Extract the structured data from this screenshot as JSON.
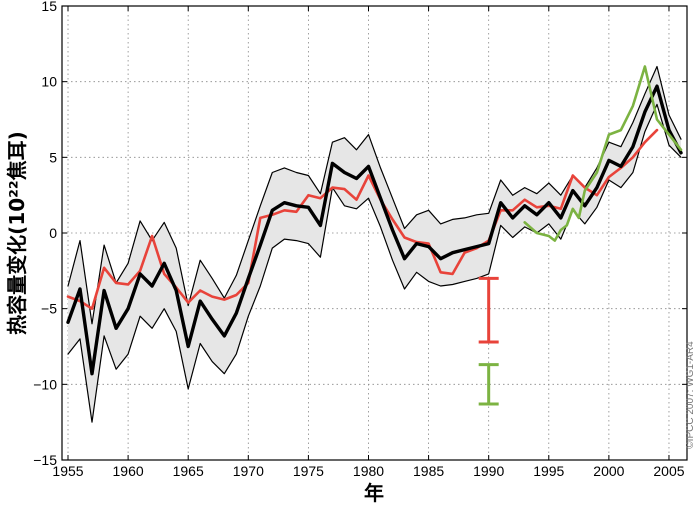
{
  "chart_data": {
    "type": "line",
    "title": "",
    "xlabel": "年",
    "ylabel": "热容量变化(10²²焦耳)",
    "xlim": [
      1954.5,
      2006.5
    ],
    "ylim": [
      -15,
      15
    ],
    "grid": true,
    "xticks": [
      1955,
      1960,
      1965,
      1970,
      1975,
      1980,
      1985,
      1990,
      1995,
      2000,
      2005
    ],
    "xtick_labels": [
      "1955",
      "1960",
      "1965",
      "1970",
      "1975",
      "1980",
      "1985",
      "1990",
      "1995",
      "2000",
      "2005"
    ],
    "yticks": [
      15,
      10,
      5,
      0,
      -5,
      -10,
      -15
    ],
    "ytick_labels": [
      "15",
      "10",
      "5",
      "0",
      "−5",
      "−10",
      "−15"
    ],
    "credit": "©IPCC 2007: WG1-AR4",
    "series": [
      {
        "name": "Mean (black)",
        "color": "#000000",
        "x": [
          1955,
          1956,
          1957,
          1958,
          1959,
          1960,
          1961,
          1962,
          1963,
          1964,
          1965,
          1966,
          1967,
          1968,
          1969,
          1970,
          1971,
          1972,
          1973,
          1974,
          1975,
          1976,
          1977,
          1978,
          1979,
          1980,
          1981,
          1982,
          1983,
          1984,
          1985,
          1986,
          1987,
          1988,
          1989,
          1990,
          1991,
          1992,
          1993,
          1994,
          1995,
          1996,
          1997,
          1998,
          1999,
          2000,
          2001,
          2002,
          2003,
          2004,
          2005,
          2006
        ],
        "values": [
          -5.9,
          -3.7,
          -9.3,
          -3.8,
          -6.3,
          -5.0,
          -2.7,
          -3.5,
          -2.0,
          -3.8,
          -7.5,
          -4.5,
          -5.7,
          -6.8,
          -5.3,
          -3.0,
          -0.8,
          1.5,
          2.0,
          1.8,
          1.7,
          0.5,
          4.6,
          4.0,
          3.6,
          4.4,
          2.3,
          0.2,
          -1.7,
          -0.7,
          -0.9,
          -1.7,
          -1.3,
          -1.1,
          -0.9,
          -0.7,
          2.0,
          1.0,
          1.8,
          1.2,
          2.0,
          1.0,
          2.8,
          1.8,
          3.0,
          4.8,
          4.4,
          5.7,
          8.0,
          9.7,
          6.8,
          5.3
        ]
      },
      {
        "name": "Upper uncertainty bound",
        "color": "#000000",
        "x": [
          1955,
          1956,
          1957,
          1958,
          1959,
          1960,
          1961,
          1962,
          1963,
          1964,
          1965,
          1966,
          1967,
          1968,
          1969,
          1970,
          1971,
          1972,
          1973,
          1974,
          1975,
          1976,
          1977,
          1978,
          1979,
          1980,
          1981,
          1982,
          1983,
          1984,
          1985,
          1986,
          1987,
          1988,
          1989,
          1990,
          1991,
          1992,
          1993,
          1994,
          1995,
          1996,
          1997,
          1998,
          1999,
          2000,
          2001,
          2002,
          2003,
          2004,
          2005,
          2006
        ],
        "values": [
          -3.5,
          -0.5,
          -6.0,
          -0.8,
          -3.3,
          -2.0,
          0.8,
          -0.5,
          0.7,
          -1.0,
          -4.8,
          -1.8,
          -3.0,
          -4.3,
          -2.8,
          -0.5,
          1.8,
          4.0,
          4.3,
          4.0,
          3.8,
          2.6,
          6.0,
          6.3,
          5.5,
          6.5,
          4.3,
          2.3,
          0.3,
          1.2,
          1.5,
          0.6,
          0.9,
          1.0,
          1.2,
          1.3,
          3.5,
          2.5,
          3.0,
          2.6,
          3.3,
          2.5,
          3.8,
          3.0,
          4.3,
          6.0,
          5.7,
          7.3,
          9.2,
          11.0,
          7.8,
          6.2
        ]
      },
      {
        "name": "Lower uncertainty bound",
        "color": "#000000",
        "x": [
          1955,
          1956,
          1957,
          1958,
          1959,
          1960,
          1961,
          1962,
          1963,
          1964,
          1965,
          1966,
          1967,
          1968,
          1969,
          1970,
          1971,
          1972,
          1973,
          1974,
          1975,
          1976,
          1977,
          1978,
          1979,
          1980,
          1981,
          1982,
          1983,
          1984,
          1985,
          1986,
          1987,
          1988,
          1989,
          1990,
          1991,
          1992,
          1993,
          1994,
          1995,
          1996,
          1997,
          1998,
          1999,
          2000,
          2001,
          2002,
          2003,
          2004,
          2005,
          2006
        ],
        "values": [
          -8.0,
          -7.0,
          -12.5,
          -6.8,
          -9.0,
          -8.0,
          -5.5,
          -6.3,
          -5.0,
          -6.5,
          -10.3,
          -7.3,
          -8.5,
          -9.3,
          -8.0,
          -5.5,
          -3.5,
          -1.0,
          -0.4,
          -0.5,
          -0.7,
          -1.6,
          3.0,
          1.8,
          1.6,
          2.3,
          0.4,
          -1.8,
          -3.7,
          -2.6,
          -3.2,
          -3.5,
          -3.4,
          -3.2,
          -3.0,
          -2.7,
          0.5,
          -0.3,
          0.4,
          0.0,
          0.6,
          -0.4,
          1.5,
          0.6,
          1.7,
          3.5,
          3.0,
          4.0,
          6.7,
          8.5,
          5.8,
          5.0
        ]
      },
      {
        "name": "Red series",
        "color": "#e8433a",
        "x": [
          1955,
          1956,
          1957,
          1958,
          1959,
          1960,
          1961,
          1962,
          1963,
          1964,
          1965,
          1966,
          1967,
          1968,
          1969,
          1970,
          1971,
          1972,
          1973,
          1974,
          1975,
          1976,
          1977,
          1978,
          1979,
          1980,
          1981,
          1982,
          1983,
          1984,
          1985,
          1986,
          1987,
          1988,
          1989,
          1990,
          1991,
          1992,
          1993,
          1994,
          1995,
          1996,
          1997,
          1998,
          1999,
          2000,
          2001,
          2002,
          2003,
          2004
        ],
        "values": [
          -4.2,
          -4.5,
          -5.0,
          -2.3,
          -3.3,
          -3.4,
          -2.5,
          -0.2,
          -2.7,
          -3.6,
          -4.6,
          -3.8,
          -4.2,
          -4.4,
          -4.1,
          -3.3,
          1.0,
          1.2,
          1.5,
          1.4,
          2.5,
          2.3,
          3.0,
          2.9,
          2.2,
          3.8,
          2.2,
          0.9,
          -0.3,
          -0.6,
          -0.7,
          -2.6,
          -2.7,
          -1.3,
          -1.0,
          -0.5,
          1.5,
          1.5,
          2.2,
          1.7,
          1.8,
          1.6,
          3.8,
          3.0,
          2.5,
          3.7,
          4.3,
          5.0,
          6.0,
          6.8
        ]
      },
      {
        "name": "Green series",
        "color": "#7cb342",
        "x": [
          1993,
          1994,
          1995,
          1995.5,
          1996,
          1996.5,
          1997,
          1997.5,
          1998,
          1999,
          2000,
          2001,
          2002,
          2003,
          2004,
          2005,
          2006
        ],
        "values": [
          0.7,
          0.0,
          -0.2,
          -0.5,
          0.2,
          0.5,
          1.6,
          1.0,
          2.8,
          4.0,
          6.5,
          6.8,
          8.4,
          11.0,
          7.5,
          6.5,
          5.5
        ]
      }
    ],
    "error_bars": [
      {
        "name": "Red error bar",
        "color": "#e8433a",
        "x": 1990,
        "low": -7.2,
        "high": -3.0
      },
      {
        "name": "Green error bar",
        "color": "#7cb342",
        "x": 1990,
        "low": -11.3,
        "high": -8.7
      }
    ]
  }
}
